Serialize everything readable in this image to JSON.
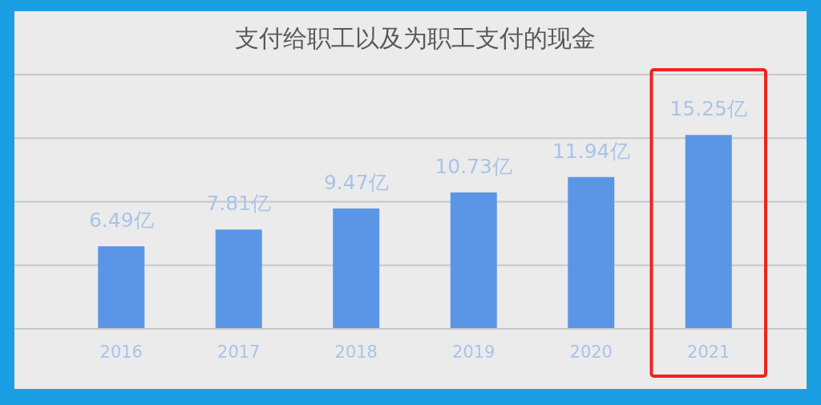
{
  "chart_data": {
    "type": "bar",
    "title": "支付给职工以及为职工支付的现金",
    "categories": [
      "2016",
      "2017",
      "2018",
      "2019",
      "2020",
      "2021"
    ],
    "values": [
      6.49,
      7.81,
      9.47,
      10.73,
      11.94,
      15.25
    ],
    "value_labels": [
      "6.49亿",
      "7.81亿",
      "9.47亿",
      "10.73亿",
      "11.94亿",
      "15.25亿"
    ],
    "color": "#5b96e6",
    "ylim": [
      0,
      20
    ],
    "yticks": [
      {
        "value": 0,
        "label": null
      },
      {
        "value": 5,
        "label": null
      },
      {
        "value": 10,
        "label": null
      },
      {
        "value": 15,
        "label": null
      },
      {
        "value": 20,
        "label": null
      }
    ],
    "grid": "y"
  }
}
